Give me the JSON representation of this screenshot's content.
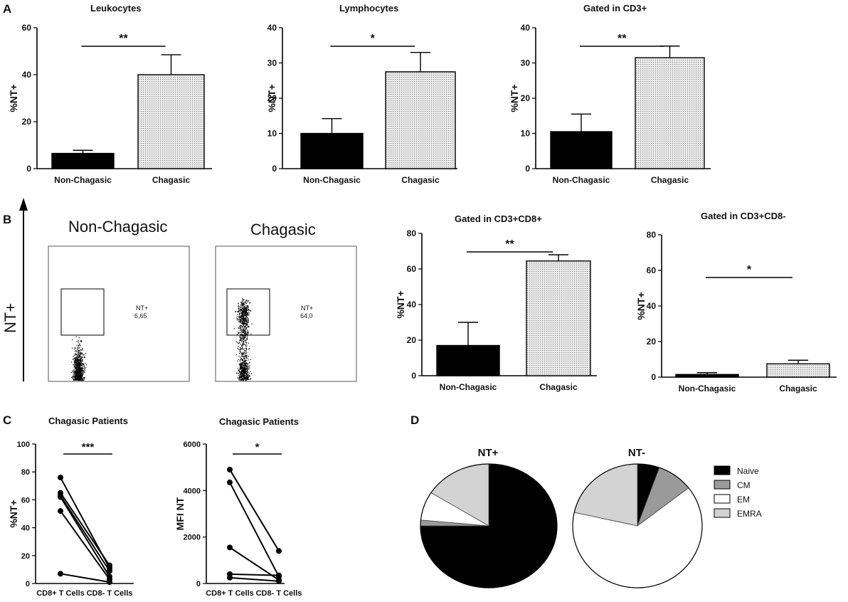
{
  "panels": {
    "a": "A",
    "b": "B",
    "c": "C",
    "d": "D"
  },
  "flow": {
    "y_label": "NT+",
    "plots": [
      {
        "title": "Non-Chagasic",
        "gate_label": "NT+",
        "gate_value": "6,65"
      },
      {
        "title": "Chagasic",
        "gate_label": "NT+",
        "gate_value": "64,0"
      }
    ]
  },
  "colors": {
    "dark": "#000000",
    "dotted": "#e4e4e4",
    "naive": "#000000",
    "cm": "#9a9a9a",
    "em": "#ffffff",
    "emra": "#d3d3d3"
  },
  "chart_data": [
    {
      "id": "a1",
      "type": "bar",
      "title": "Leukocytes",
      "ylabel": "%NT+",
      "ylim": [
        0,
        60
      ],
      "yticks": [
        0,
        20,
        40,
        60
      ],
      "categories": [
        "Non-Chagasic",
        "Chagasic"
      ],
      "values": [
        6.5,
        40
      ],
      "errors": [
        1.3,
        8.5
      ],
      "significance": "**"
    },
    {
      "id": "a2",
      "type": "bar",
      "title": "Lymphocytes",
      "ylabel": "%NT+",
      "ylim": [
        0,
        40
      ],
      "yticks": [
        0,
        10,
        20,
        30,
        40
      ],
      "categories": [
        "Non-Chagasic",
        "Chagasic"
      ],
      "values": [
        10,
        27.5
      ],
      "errors": [
        4.2,
        5.5
      ],
      "significance": "*"
    },
    {
      "id": "a3",
      "type": "bar",
      "title": "Gated in CD3+",
      "ylabel": "%NT+",
      "ylim": [
        0,
        40
      ],
      "yticks": [
        0,
        10,
        20,
        30,
        40
      ],
      "categories": [
        "Non-Chagasic",
        "Chagasic"
      ],
      "values": [
        10.5,
        31.5
      ],
      "errors": [
        5,
        3.3
      ],
      "significance": "**"
    },
    {
      "id": "b1",
      "type": "bar",
      "title": "Gated in CD3+CD8+",
      "ylabel": "%NT+",
      "ylim": [
        0,
        80
      ],
      "yticks": [
        0,
        20,
        40,
        60,
        80
      ],
      "categories": [
        "Non-Chagasic",
        "Chagasic"
      ],
      "values": [
        17,
        64.5
      ],
      "errors": [
        13,
        3.5
      ],
      "significance": "**"
    },
    {
      "id": "b2",
      "type": "bar",
      "title": "Gated in CD3+CD8-",
      "ylabel": "%NT+",
      "ylim": [
        0,
        80
      ],
      "yticks": [
        0,
        20,
        40,
        60,
        80
      ],
      "categories": [
        "Non-Chagasic",
        "Chagasic"
      ],
      "values": [
        1.5,
        7.5
      ],
      "errors": [
        1,
        2
      ],
      "significance": "*"
    },
    {
      "id": "c1",
      "type": "line",
      "title": "Chagasic Patients",
      "ylabel": "%NT+",
      "ylim": [
        0,
        100
      ],
      "yticks": [
        0,
        20,
        40,
        60,
        80,
        100
      ],
      "categories": [
        "CD8+ T Cells",
        "CD8- T Cells"
      ],
      "significance": "***",
      "pairs": [
        [
          76,
          11
        ],
        [
          65,
          13
        ],
        [
          63,
          9
        ],
        [
          62,
          5
        ],
        [
          52,
          3
        ],
        [
          7,
          1
        ]
      ]
    },
    {
      "id": "c2",
      "type": "line",
      "title": "Chagasic Patients",
      "ylabel": "MFI NT",
      "ylim": [
        0,
        6000
      ],
      "yticks": [
        0,
        2000,
        4000,
        6000
      ],
      "categories": [
        "CD8+ T Cells",
        "CD8- T Cells"
      ],
      "significance": "*",
      "pairs": [
        [
          4900,
          1400
        ],
        [
          4350,
          300
        ],
        [
          1550,
          150
        ],
        [
          400,
          350
        ],
        [
          250,
          100
        ]
      ]
    },
    {
      "id": "d1",
      "type": "pie",
      "title": "NT+",
      "labels": [
        "Naive",
        "CM",
        "EM",
        "EMRA"
      ],
      "values": [
        75,
        1.5,
        7.5,
        16
      ]
    },
    {
      "id": "d2",
      "type": "pie",
      "title": "NT-",
      "labels": [
        "Naive",
        "CM",
        "EM",
        "EMRA"
      ],
      "values": [
        5.5,
        9,
        64,
        21.5
      ]
    }
  ],
  "legend": [
    "Naive",
    "CM",
    "EM",
    "EMRA"
  ]
}
